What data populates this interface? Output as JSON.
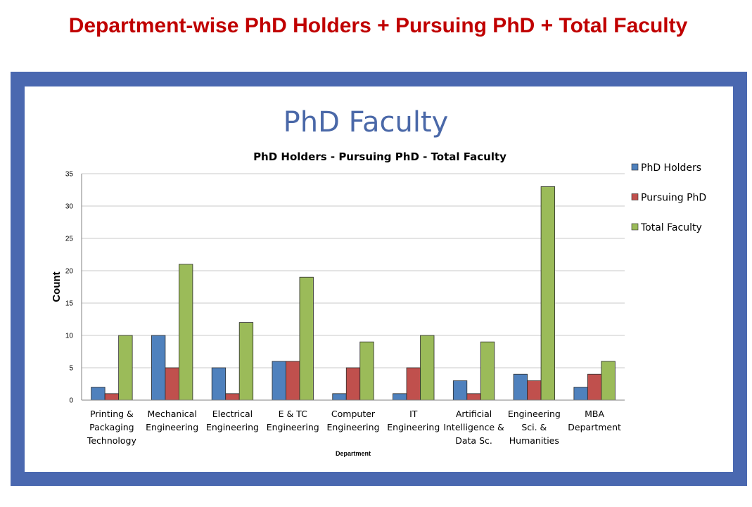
{
  "header": {
    "title": "Department-wise PhD Holders + Pursuing PhD + Total Faculty"
  },
  "chart_data": {
    "type": "bar",
    "title": "PhD Faculty",
    "subtitle": "PhD Holders - Pursuing PhD - Total Faculty",
    "xlabel": "Department",
    "ylabel": "Count",
    "ylim": [
      0,
      35
    ],
    "yticks": [
      0,
      5,
      10,
      15,
      20,
      25,
      30,
      35
    ],
    "grid": true,
    "legend_position": "right",
    "categories": [
      [
        "Printing &",
        "Packaging",
        "Technology"
      ],
      [
        "Mechanical",
        "Engineering"
      ],
      [
        "Electrical",
        "Engineering"
      ],
      [
        "E & TC",
        "Engineering"
      ],
      [
        "Computer",
        "Engineering"
      ],
      [
        "IT",
        "Engineering"
      ],
      [
        "Artificial",
        "Intelligence &",
        "Data Sc."
      ],
      [
        "Engineering",
        "Sci. &",
        "Humanities"
      ],
      [
        "MBA",
        "Department"
      ]
    ],
    "series": [
      {
        "name": "PhD Holders",
        "color": "#4f81bd",
        "values": [
          2,
          10,
          5,
          6,
          1,
          1,
          3,
          4,
          2
        ]
      },
      {
        "name": "Pursuing PhD",
        "color": "#c0504d",
        "values": [
          1,
          5,
          1,
          6,
          5,
          5,
          1,
          3,
          4
        ]
      },
      {
        "name": "Total Faculty",
        "color": "#9bbb59",
        "values": [
          10,
          21,
          12,
          19,
          9,
          10,
          9,
          33,
          6
        ]
      }
    ]
  }
}
